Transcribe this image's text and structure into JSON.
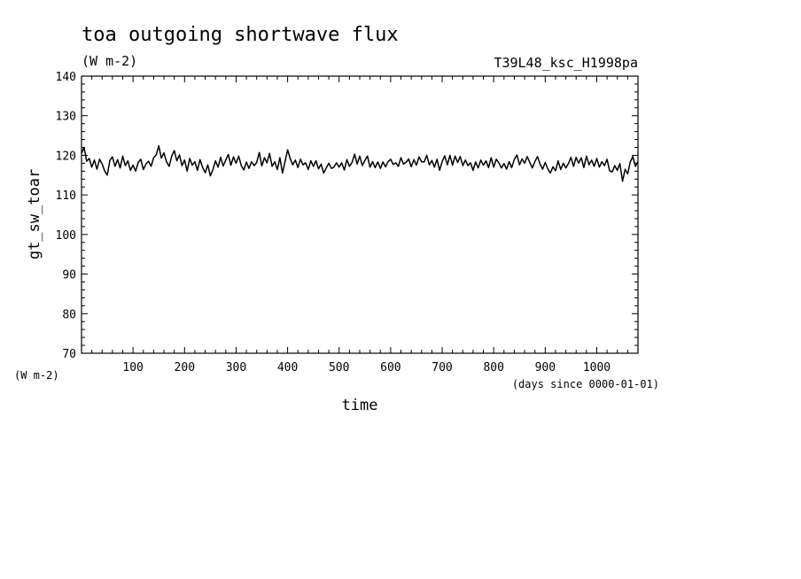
{
  "chart_data": {
    "type": "line",
    "title": "toa outgoing shortwave flux",
    "subtitle": "(W m-2)",
    "run_label": "T39L48_ksc_H1998pa",
    "ylabel": "gt_sw_toar",
    "y_units": "(W m-2)",
    "xlabel": "time",
    "x_units": "(days since 0000-01-01)",
    "xlim": [
      0,
      1080
    ],
    "ylim": [
      70,
      140
    ],
    "x_ticks": [
      100,
      200,
      300,
      400,
      500,
      600,
      700,
      800,
      900,
      1000
    ],
    "y_ticks": [
      70,
      80,
      90,
      100,
      110,
      120,
      130,
      140
    ],
    "grid": false,
    "series": [
      {
        "x": [
          0,
          5,
          10,
          15,
          20,
          25,
          30,
          35,
          40,
          45,
          50,
          55,
          60,
          65,
          70,
          75,
          80,
          85,
          90,
          95,
          100,
          105,
          110,
          115,
          120,
          125,
          130,
          135,
          140,
          145,
          150,
          155,
          160,
          165,
          170,
          175,
          180,
          185,
          190,
          195,
          200,
          205,
          210,
          215,
          220,
          225,
          230,
          235,
          240,
          245,
          250,
          255,
          260,
          265,
          270,
          275,
          280,
          285,
          290,
          295,
          300,
          305,
          310,
          315,
          320,
          325,
          330,
          335,
          340,
          345,
          350,
          355,
          360,
          365,
          370,
          375,
          380,
          385,
          390,
          395,
          400,
          405,
          410,
          415,
          420,
          425,
          430,
          435,
          440,
          445,
          450,
          455,
          460,
          465,
          470,
          475,
          480,
          485,
          490,
          495,
          500,
          505,
          510,
          515,
          520,
          525,
          530,
          535,
          540,
          545,
          550,
          555,
          560,
          565,
          570,
          575,
          580,
          585,
          590,
          595,
          600,
          605,
          610,
          615,
          620,
          625,
          630,
          635,
          640,
          645,
          650,
          655,
          660,
          665,
          670,
          675,
          680,
          685,
          690,
          695,
          700,
          705,
          710,
          715,
          720,
          725,
          730,
          735,
          740,
          745,
          750,
          755,
          760,
          765,
          770,
          775,
          780,
          785,
          790,
          795,
          800,
          805,
          810,
          815,
          820,
          825,
          830,
          835,
          840,
          845,
          850,
          855,
          860,
          865,
          870,
          875,
          880,
          885,
          890,
          895,
          900,
          905,
          910,
          915,
          920,
          925,
          930,
          935,
          940,
          945,
          950,
          955,
          960,
          965,
          970,
          975,
          980,
          985,
          990,
          995,
          1000,
          1005,
          1010,
          1015,
          1020,
          1025,
          1030,
          1035,
          1040,
          1045,
          1050,
          1055,
          1060,
          1065,
          1070,
          1075,
          1080
        ],
        "values": [
          120.5,
          122.0,
          118.5,
          119.2,
          117.0,
          118.8,
          116.5,
          119.0,
          117.8,
          116.0,
          115.0,
          118.7,
          119.6,
          117.2,
          118.9,
          116.8,
          119.8,
          117.4,
          118.6,
          116.2,
          117.5,
          116.0,
          118.2,
          119.0,
          116.4,
          117.8,
          118.5,
          117.2,
          119.4,
          120.1,
          122.4,
          119.3,
          120.6,
          118.4,
          117.2,
          119.8,
          121.2,
          118.6,
          120.1,
          117.4,
          118.8,
          116.0,
          119.2,
          117.5,
          118.4,
          116.2,
          118.9,
          117.0,
          115.6,
          117.6,
          114.8,
          116.4,
          118.6,
          117.0,
          119.5,
          117.3,
          118.8,
          120.2,
          117.5,
          119.6,
          118.0,
          119.8,
          117.4,
          116.3,
          118.3,
          116.7,
          118.4,
          117.4,
          118.2,
          120.7,
          117.3,
          119.4,
          118.1,
          120.5,
          117.2,
          118.4,
          116.4,
          119.4,
          115.5,
          118.4,
          121.4,
          119.2,
          117.6,
          118.8,
          116.9,
          119.0,
          117.6,
          118.1,
          116.4,
          118.6,
          117.2,
          118.6,
          116.6,
          117.8,
          115.5,
          116.8,
          118.0,
          116.7,
          117.0,
          118.1,
          117.0,
          118.1,
          116.3,
          118.9,
          117.2,
          118.2,
          120.3,
          117.8,
          119.8,
          117.4,
          118.7,
          119.8,
          117.0,
          118.4,
          116.9,
          118.3,
          116.7,
          118.3,
          117.1,
          118.4,
          119.0,
          117.7,
          118.1,
          117.2,
          119.4,
          117.8,
          118.2,
          119.1,
          117.1,
          118.9,
          117.5,
          119.6,
          118.4,
          118.3,
          120.0,
          117.6,
          118.7,
          117.0,
          119.0,
          116.2,
          118.4,
          119.9,
          117.6,
          120.0,
          117.5,
          119.8,
          118.2,
          119.7,
          117.4,
          118.8,
          117.4,
          118.1,
          116.2,
          118.3,
          116.8,
          118.8,
          117.5,
          118.6,
          116.9,
          119.4,
          117.0,
          119.0,
          118.1,
          116.8,
          117.9,
          116.5,
          118.4,
          116.9,
          118.9,
          120.1,
          117.6,
          119.1,
          118.0,
          119.7,
          118.2,
          116.8,
          118.4,
          119.7,
          117.8,
          116.5,
          118.2,
          116.6,
          115.5,
          117.1,
          116.1,
          118.6,
          116.4,
          118.0,
          116.8,
          117.9,
          119.5,
          117.2,
          119.5,
          118.0,
          119.4,
          116.9,
          119.8,
          117.6,
          118.8,
          117.2,
          119.2,
          117.0,
          118.4,
          117.4,
          119.0,
          116.1,
          115.8,
          117.4,
          116.2,
          117.9,
          113.4,
          116.5,
          115.3,
          118.3,
          119.7,
          117.2,
          118.4
        ]
      }
    ]
  }
}
